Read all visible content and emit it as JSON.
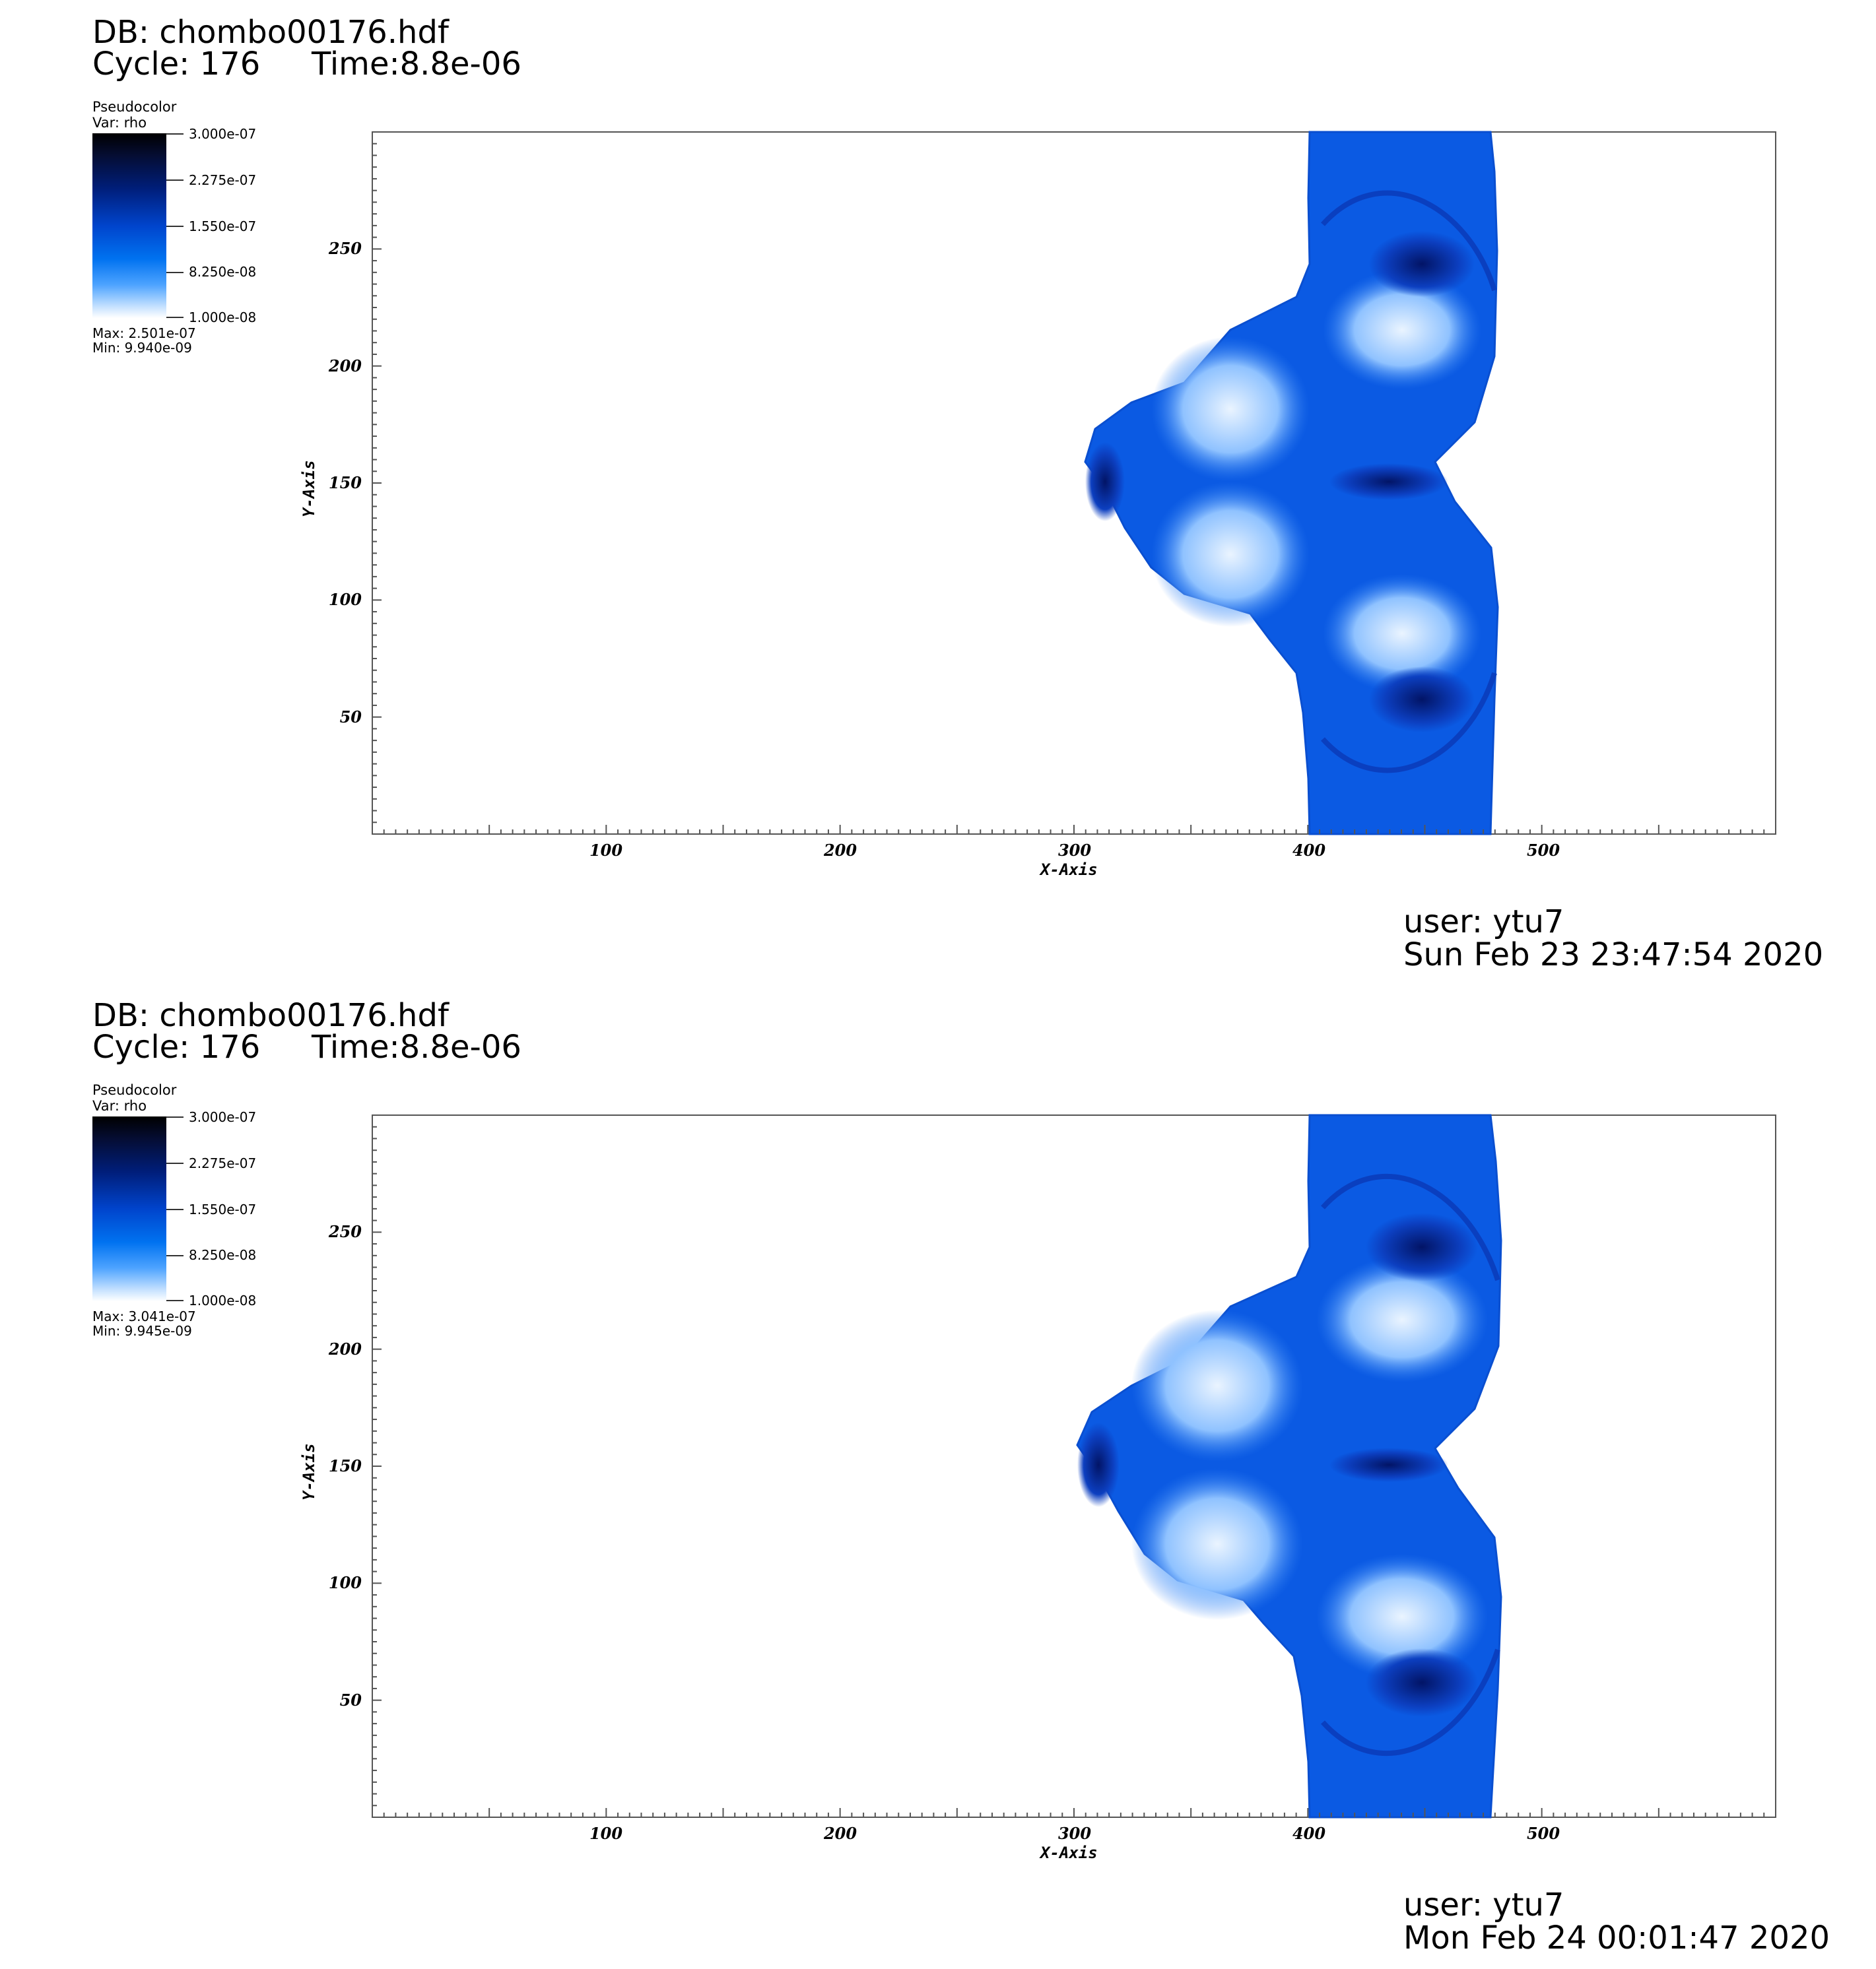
{
  "panels": [
    {
      "db": "DB: chombo00176.hdf",
      "cycle": "Cycle: 176",
      "time": "Time:8.8e-06",
      "legend_title": "Pseudocolor",
      "legend_var": "Var: rho",
      "colorbar_labels": [
        "3.000e-07",
        "2.275e-07",
        "1.550e-07",
        "8.250e-08",
        "1.000e-08"
      ],
      "max": "Max:  2.501e-07",
      "min": "Min:  9.940e-09",
      "y_ticks": [
        "250",
        "200",
        "150",
        "100",
        "50"
      ],
      "x_ticks": [
        "100",
        "200",
        "300",
        "400",
        "500"
      ],
      "x_axis": "X-Axis",
      "y_axis": "Y-Axis",
      "user": "user: ytu7",
      "date": "Sun Feb 23 23:47:54 2020"
    },
    {
      "db": "DB: chombo00176.hdf",
      "cycle": "Cycle: 176",
      "time": "Time:8.8e-06",
      "legend_title": "Pseudocolor",
      "legend_var": "Var: rho",
      "colorbar_labels": [
        "3.000e-07",
        "2.275e-07",
        "1.550e-07",
        "8.250e-08",
        "1.000e-08"
      ],
      "max": "Max:  3.041e-07",
      "min": "Min:  9.945e-09",
      "y_ticks": [
        "250",
        "200",
        "150",
        "100",
        "50"
      ],
      "x_ticks": [
        "100",
        "200",
        "300",
        "400",
        "500"
      ],
      "x_axis": "X-Axis",
      "y_axis": "Y-Axis",
      "user": "user: ytu7",
      "date": "Mon Feb 24 00:01:47 2020"
    }
  ],
  "colors": {
    "field_dark": "#001a80",
    "field_mid": "#0a5ce6",
    "field_light": "#cfe6ff"
  }
}
